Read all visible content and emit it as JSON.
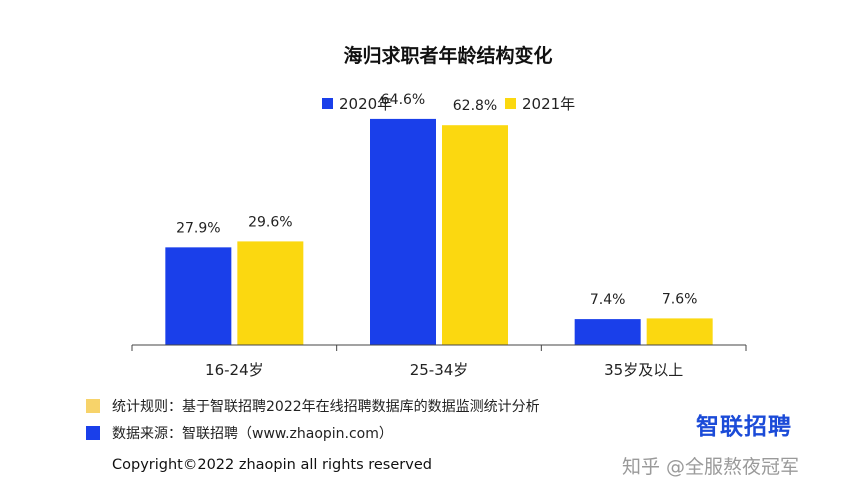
{
  "colors": {
    "y2020": "#1a3fea",
    "y2021": "#fbd810",
    "rule_swatch": "#f7d36a",
    "source_swatch": "#1a3fea",
    "axis": "#444444"
  },
  "chart_data": {
    "type": "bar",
    "title": "海归求职者年龄结构变化",
    "categories": [
      "16-24岁",
      "25-34岁",
      "35岁及以上"
    ],
    "series": [
      {
        "name": "2020年",
        "values": [
          27.9,
          64.6,
          7.4
        ],
        "labels": [
          "27.9%",
          "64.6%",
          "7.4%"
        ]
      },
      {
        "name": "2021年",
        "values": [
          29.6,
          62.8,
          7.6
        ],
        "labels": [
          "29.6%",
          "62.8%",
          "7.6%"
        ]
      }
    ],
    "ylim": [
      0,
      70
    ],
    "grid": false,
    "legend_position": "top"
  },
  "footer": {
    "rule": "统计规则：基于智联招聘2022年在线招聘数据库的数据监测统计分析",
    "source": "数据来源：智联招聘（www.zhaopin.com）",
    "copyright": "Copyright©2022 zhaopin all rights reserved",
    "brand": "智联招聘",
    "watermark": "知乎 @全服熬夜冠军"
  }
}
